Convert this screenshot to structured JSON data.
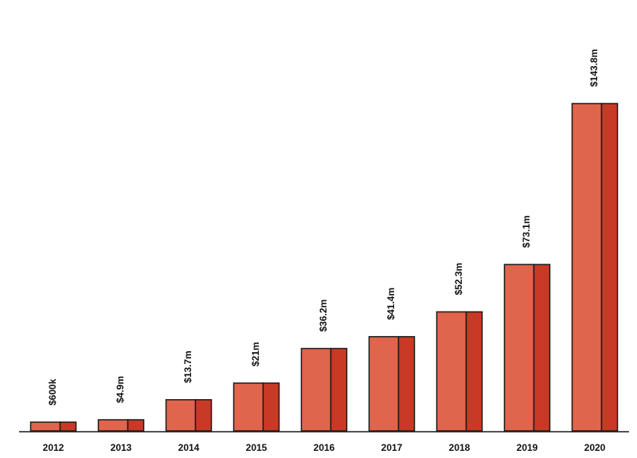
{
  "chart_data": {
    "type": "bar",
    "categories": [
      "2012",
      "2013",
      "2014",
      "2015",
      "2016",
      "2017",
      "2018",
      "2019",
      "2020"
    ],
    "values": [
      0.6,
      4.9,
      13.7,
      21,
      36.2,
      41.4,
      52.3,
      73.1,
      143.8
    ],
    "value_labels": [
      "$600k",
      "$4.9m",
      "$13.7m",
      "$21m",
      "$36.2m",
      "$41.4m",
      "$52.3m",
      "$73.1m",
      "$143.8m"
    ],
    "unit": "$m",
    "ylim": [
      0,
      143.8
    ],
    "grid": false,
    "legend": "none",
    "title": "",
    "xlabel": "",
    "ylabel": ""
  },
  "colors": {
    "bar_front": "#e0654d",
    "bar_side": "#c93a26",
    "bar_outline": "#1a1a1a",
    "baseline": "#1a1a1a"
  }
}
